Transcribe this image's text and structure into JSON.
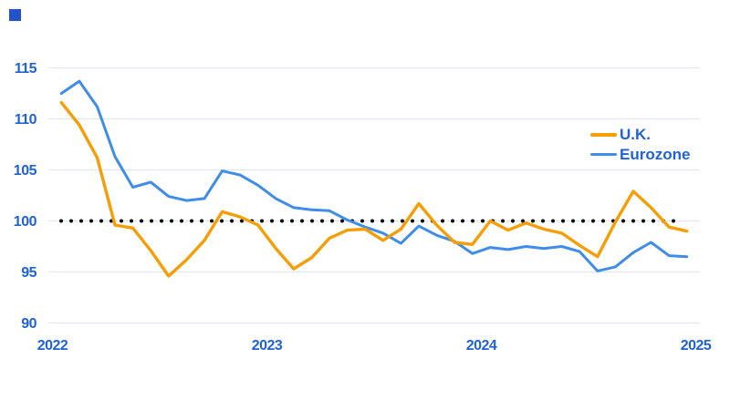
{
  "chart_data": {
    "type": "line",
    "title": "",
    "xlabel": "",
    "ylabel": "",
    "frequency": "monthly",
    "x_start": "2022-01",
    "x_end": "2024-12",
    "x_tick_labels": [
      "2022",
      "2023",
      "2024",
      "2025"
    ],
    "y_ticks": [
      90,
      95,
      100,
      105,
      110,
      115
    ],
    "ylim": [
      88,
      117
    ],
    "baseline_value": 100,
    "grid": "horizontal",
    "legend_position": "inside-right",
    "series": [
      {
        "name": "U.K.",
        "color": "#f59e06",
        "values": [
          111.6,
          109.4,
          106.2,
          99.6,
          99.3,
          97.1,
          94.6,
          96.2,
          98.1,
          100.9,
          100.4,
          99.6,
          97.3,
          95.3,
          96.4,
          98.3,
          99.1,
          99.2,
          98.1,
          99.2,
          101.7,
          99.6,
          97.9,
          97.7,
          100.0,
          99.1,
          99.8,
          99.2,
          98.8,
          97.6,
          96.5,
          99.9,
          102.9,
          101.3,
          99.4,
          99.0
        ]
      },
      {
        "name": "Eurozone",
        "color": "#3f8de8",
        "values": [
          112.5,
          113.7,
          111.2,
          106.3,
          103.3,
          103.8,
          102.4,
          102.0,
          102.2,
          104.9,
          104.5,
          103.5,
          102.2,
          101.3,
          101.1,
          101.0,
          100.1,
          99.4,
          98.8,
          97.8,
          99.5,
          98.6,
          98.0,
          96.8,
          97.4,
          97.2,
          97.5,
          97.3,
          97.5,
          97.0,
          95.1,
          95.5,
          96.9,
          97.9,
          96.6,
          96.5
        ]
      }
    ]
  },
  "legend": {
    "items": [
      {
        "label": "U.K."
      },
      {
        "label": "Eurozone"
      }
    ]
  },
  "colors": {
    "uk_line": "#f59e06",
    "eurozone_line": "#3f8de8",
    "axis_label": "#1f62d7",
    "gridline": "#dde5f5",
    "baseline_dots": "#0a0a0a",
    "brand_square": "#2452c8",
    "background": "#ffffff"
  }
}
